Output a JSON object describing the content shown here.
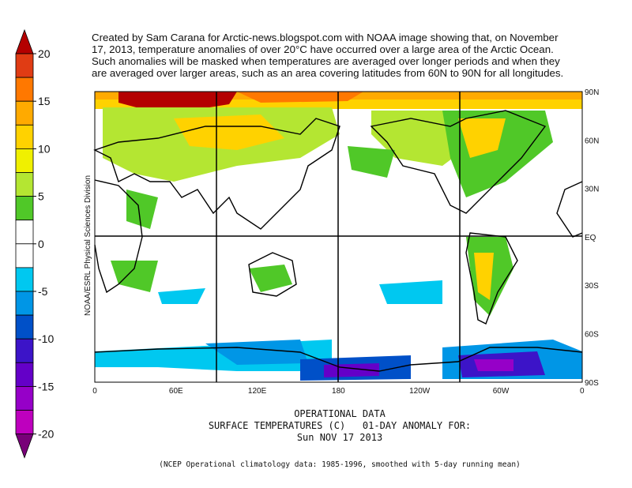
{
  "annotation": {
    "lines": [
      "Created by Sam Carana for Arctic-news.blogspot.com with NOAA image showing that, on November",
      "17, 2013, temperature anomalies of over 20°C have occurred over a large area of the Arctic Ocean.",
      "Such anomalies will be masked when temperatures are averaged over longer periods and when they",
      "are averaged over larger areas, such as an area covering latitudes from 60N to 90N for all longitudes."
    ]
  },
  "colorbar": {
    "ticks": [
      20,
      15,
      10,
      5,
      0,
      -5,
      -10,
      -15,
      -20
    ],
    "colors": [
      "#b40000",
      "#e03c14",
      "#ff7800",
      "#ffaa00",
      "#ffd200",
      "#f0f000",
      "#b4e632",
      "#50c828",
      "#ffffff",
      "#ffffff",
      "#00c8f0",
      "#0096e6",
      "#0050c8",
      "#3c14c8",
      "#6400c8",
      "#9600c8",
      "#be00be",
      "#780078"
    ]
  },
  "map": {
    "lat_labels": [
      "90N",
      "60N",
      "30N",
      "EQ",
      "30S",
      "60S",
      "90S"
    ],
    "lon_labels": [
      "0",
      "60E",
      "120E",
      "180",
      "120W",
      "60W",
      "0"
    ],
    "credit": "NOAA/ESRL Physical Sciences Division"
  },
  "footer": {
    "lines": [
      "OPERATIONAL DATA",
      "SURFACE TEMPERATURES (C)   01-DAY ANOMALY FOR:",
      "Sun NOV 17 2013"
    ],
    "note": "(NCEP Operational climatology data: 1985-1996, smoothed with 5-day running mean)"
  }
}
